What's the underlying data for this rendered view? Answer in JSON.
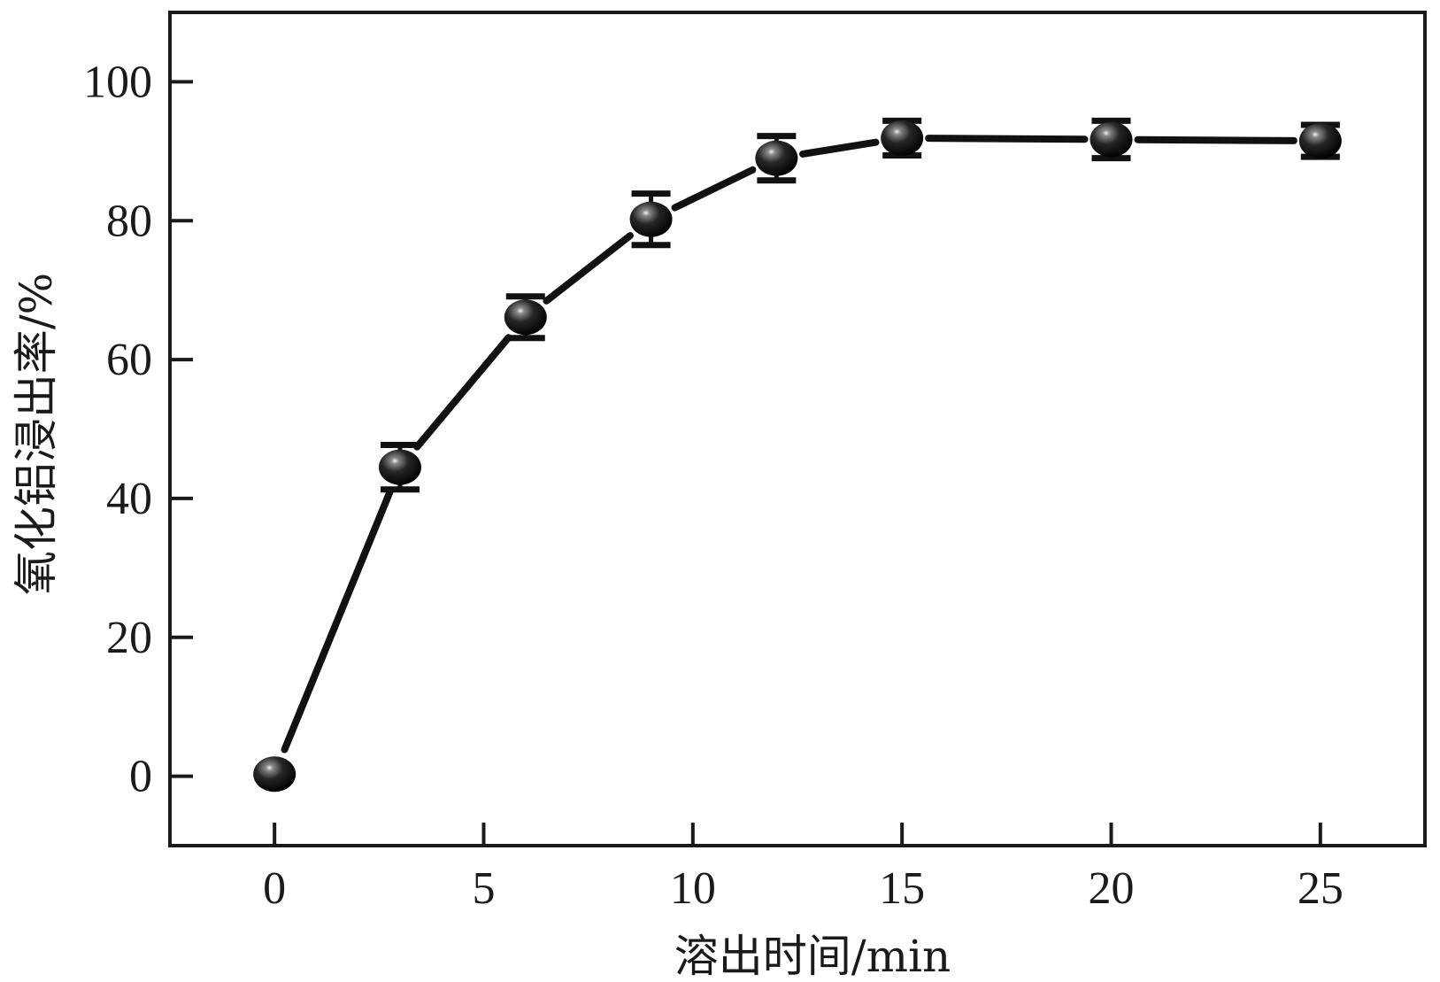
{
  "chart_data": {
    "type": "line",
    "xlabel": "溶出时间/min",
    "ylabel": "氧化铝浸出率/%",
    "xlim": [
      -2.5,
      27.5
    ],
    "ylim": [
      -10,
      110
    ],
    "xticks": [
      0,
      5,
      10,
      15,
      20,
      25
    ],
    "yticks": [
      0,
      20,
      40,
      60,
      80,
      100
    ],
    "xtick_labels": [
      "0",
      "5",
      "10",
      "15",
      "20",
      "25"
    ],
    "ytick_labels": [
      "0",
      "20",
      "40",
      "60",
      "80",
      "100"
    ],
    "grid": false,
    "series": [
      {
        "x": [
          0,
          3,
          6,
          9,
          12,
          15,
          20,
          25
        ],
        "y": [
          0.3,
          44.5,
          66.1,
          80.2,
          89.0,
          91.9,
          91.7,
          91.5
        ],
        "error": [
          0,
          3.2,
          3.0,
          3.7,
          3.2,
          2.5,
          2.7,
          2.3
        ]
      }
    ]
  }
}
